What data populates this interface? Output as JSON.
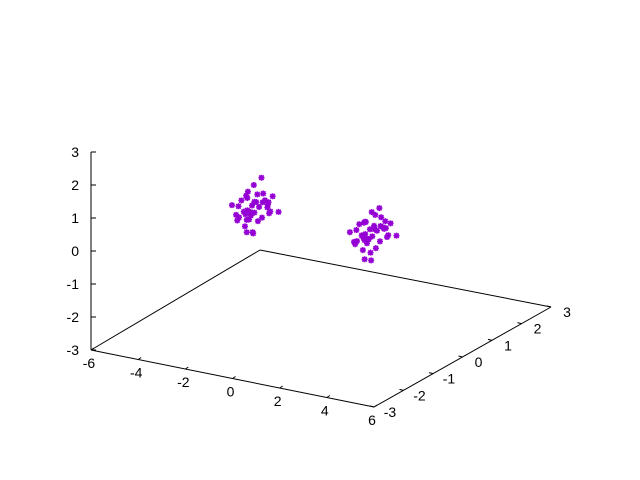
{
  "chart_data": {
    "type": "scatter",
    "title": "",
    "xlabel": "",
    "ylabel": "",
    "zlabel": "",
    "xlim": [
      -6,
      6
    ],
    "ylim": [
      -3,
      3
    ],
    "zlim": [
      -3,
      3
    ],
    "grid": false,
    "marker": "asterisk",
    "marker_color": "#9400d3",
    "x_ticks": [
      "-6",
      "-4",
      "-2",
      "0",
      "2",
      "4",
      "6"
    ],
    "y_ticks": [
      "-3",
      "-2",
      "-1",
      "0",
      "1",
      "2",
      "3"
    ],
    "z_ticks": [
      "-3",
      "-2",
      "-1",
      "0",
      "1",
      "2",
      "3"
    ],
    "series": [
      {
        "points": [
          [
            -3.0,
            0.0,
            0.1
          ],
          [
            -2.6,
            0.3,
            0.3
          ],
          [
            -3.3,
            -0.2,
            -0.1
          ],
          [
            -2.9,
            0.5,
            0.0
          ],
          [
            -3.1,
            -0.4,
            0.2
          ],
          [
            -2.7,
            -0.1,
            0.5
          ],
          [
            -3.4,
            0.2,
            -0.3
          ],
          [
            -2.8,
            0.1,
            -0.2
          ],
          [
            -3.2,
            0.4,
            0.4
          ],
          [
            -3.0,
            -0.3,
            0.6
          ],
          [
            -2.5,
            0.0,
            0.0
          ],
          [
            -3.5,
            0.0,
            0.2
          ],
          [
            -2.9,
            -0.2,
            -0.4
          ],
          [
            -3.1,
            0.2,
            0.8
          ],
          [
            -2.7,
            0.4,
            -0.1
          ],
          [
            -3.3,
            0.3,
            0.1
          ],
          [
            -3.0,
            0.1,
            -0.6
          ],
          [
            -2.6,
            -0.3,
            0.2
          ],
          [
            -3.4,
            -0.3,
            0.4
          ],
          [
            -2.8,
            0.6,
            0.3
          ],
          [
            -3.2,
            0.0,
            0.0
          ],
          [
            -3.0,
            0.2,
            0.3
          ],
          [
            -2.4,
            0.2,
            0.1
          ],
          [
            -3.6,
            0.1,
            -0.2
          ],
          [
            -2.9,
            0.3,
            1.0
          ],
          [
            -3.1,
            -0.1,
            -0.3
          ],
          [
            -2.7,
            0.2,
            0.6
          ],
          [
            -3.3,
            0.1,
            0.5
          ],
          [
            -3.0,
            -0.1,
            0.2
          ],
          [
            -2.8,
            -0.2,
            0.0
          ],
          [
            -3.2,
            0.3,
            -0.1
          ],
          [
            -2.6,
            0.1,
            0.4
          ],
          [
            -3.5,
            0.3,
            0.3
          ],
          [
            -2.3,
            0.4,
            0.0
          ],
          [
            -3.0,
            0.5,
            0.2
          ],
          [
            -3.1,
            0.0,
            0.7
          ],
          [
            -2.9,
            0.0,
            -0.5
          ],
          [
            -3.4,
            0.1,
            0.0
          ],
          [
            -2.5,
            0.2,
            0.3
          ],
          [
            -3.0,
            0.3,
            0.1
          ]
        ]
      },
      {
        "points": [
          [
            2.0,
            0.0,
            0.0
          ],
          [
            2.3,
            0.3,
            0.2
          ],
          [
            1.7,
            -0.2,
            -0.1
          ],
          [
            2.1,
            0.5,
            0.3
          ],
          [
            1.9,
            -0.4,
            0.1
          ],
          [
            2.4,
            -0.1,
            0.4
          ],
          [
            1.6,
            0.2,
            -0.2
          ],
          [
            2.2,
            0.1,
            -0.3
          ],
          [
            1.8,
            0.4,
            0.5
          ],
          [
            2.0,
            -0.3,
            0.6
          ],
          [
            2.5,
            0.0,
            0.0
          ],
          [
            1.5,
            0.0,
            0.2
          ],
          [
            2.1,
            -0.2,
            -0.5
          ],
          [
            1.9,
            0.2,
            0.7
          ],
          [
            2.3,
            0.4,
            -0.1
          ],
          [
            1.7,
            0.3,
            0.1
          ],
          [
            2.0,
            0.1,
            -0.7
          ],
          [
            2.4,
            -0.3,
            0.2
          ],
          [
            1.6,
            -0.3,
            0.3
          ],
          [
            2.2,
            0.6,
            0.2
          ],
          [
            1.8,
            0.0,
            0.0
          ],
          [
            2.0,
            0.2,
            0.3
          ],
          [
            2.6,
            0.2,
            0.1
          ],
          [
            1.4,
            0.1,
            -0.2
          ],
          [
            2.1,
            0.3,
            0.8
          ],
          [
            1.9,
            -0.1,
            -0.3
          ],
          [
            2.3,
            0.2,
            0.6
          ],
          [
            1.7,
            0.1,
            0.4
          ],
          [
            2.0,
            -0.1,
            0.2
          ],
          [
            2.2,
            -0.2,
            0.0
          ],
          [
            1.8,
            0.3,
            -0.1
          ],
          [
            2.4,
            0.1,
            0.4
          ],
          [
            1.5,
            0.3,
            0.3
          ],
          [
            2.7,
            0.4,
            0.0
          ],
          [
            2.0,
            0.5,
            0.1
          ],
          [
            1.9,
            0.0,
            0.5
          ],
          [
            2.1,
            0.0,
            -0.4
          ],
          [
            1.6,
            0.1,
            0.0
          ],
          [
            2.5,
            0.2,
            0.3
          ],
          [
            2.0,
            0.3,
            0.1
          ]
        ]
      }
    ]
  }
}
